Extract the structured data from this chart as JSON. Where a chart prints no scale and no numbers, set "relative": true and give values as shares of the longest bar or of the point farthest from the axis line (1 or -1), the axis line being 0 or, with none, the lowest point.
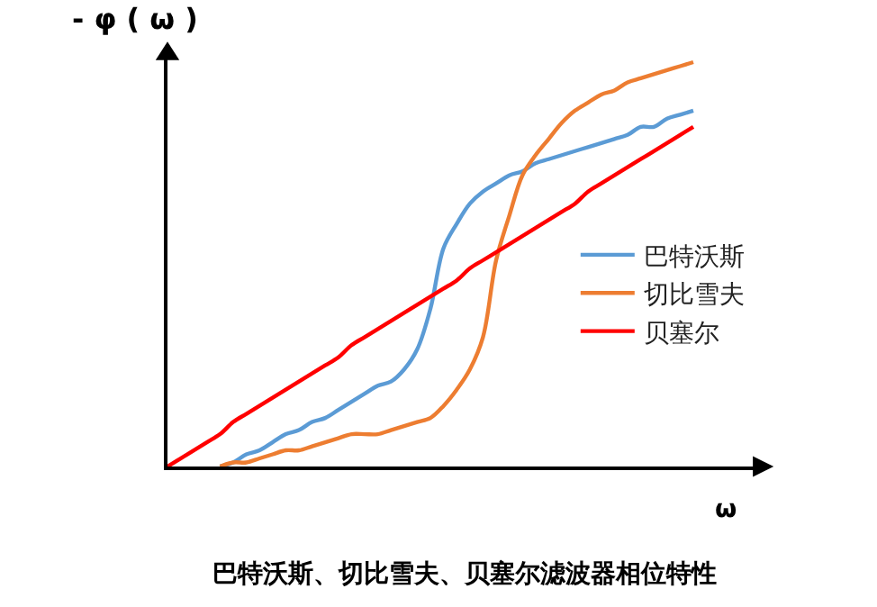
{
  "chart_data": {
    "type": "line",
    "title": "巴特沃斯、切比雪夫、贝塞尔滤波器相位特性",
    "xlabel": "ω",
    "ylabel": "- φ ( ω )",
    "relative": true,
    "legend": "right",
    "marker": "none",
    "line_style": "solid",
    "categories": [
      null,
      null,
      null,
      null,
      null,
      null,
      null,
      null,
      null,
      null,
      null,
      null,
      null,
      null,
      null,
      null,
      null,
      null,
      null,
      null,
      null,
      null,
      null,
      null,
      null,
      null,
      null,
      null,
      null,
      null,
      null,
      null,
      null,
      null,
      null,
      null,
      null,
      null,
      null,
      null,
      null
    ],
    "series": [
      {
        "name": "巴特沃斯",
        "color": "#5b9bd5",
        "values": [
          null,
          null,
          null,
          null,
          0,
          0.01,
          0.03,
          0.04,
          0.06,
          0.08,
          0.09,
          0.11,
          0.12,
          0.14,
          0.16,
          0.18,
          0.2,
          0.21,
          0.24,
          0.29,
          0.39,
          0.54,
          0.6,
          0.65,
          0.68,
          0.7,
          0.72,
          0.73,
          0.75,
          0.76,
          0.77,
          0.78,
          0.79,
          0.8,
          0.81,
          0.82,
          0.84,
          0.84,
          0.86,
          0.87,
          0.88
        ]
      },
      {
        "name": "切比雪夫",
        "color": "#ed7d31",
        "values": [
          null,
          null,
          null,
          null,
          0,
          0.01,
          0.01,
          0.02,
          0.03,
          0.04,
          0.04,
          0.05,
          0.06,
          0.07,
          0.08,
          0.08,
          0.08,
          0.09,
          0.1,
          0.11,
          0.12,
          0.15,
          0.19,
          0.24,
          0.32,
          0.51,
          0.62,
          0.72,
          0.77,
          0.81,
          0.85,
          0.88,
          0.9,
          0.92,
          0.93,
          0.95,
          0.96,
          0.97,
          0.98,
          0.99,
          1.0
        ]
      },
      {
        "name": "贝塞尔",
        "color": "#ff0000",
        "values": [
          0,
          0.02,
          0.04,
          0.06,
          0.08,
          0.11,
          0.13,
          0.15,
          0.17,
          0.19,
          0.21,
          0.23,
          0.25,
          0.27,
          0.3,
          0.32,
          0.34,
          0.36,
          0.38,
          0.4,
          0.42,
          0.44,
          0.46,
          0.49,
          0.51,
          0.53,
          0.55,
          0.57,
          0.59,
          0.61,
          0.63,
          0.65,
          0.68,
          0.7,
          0.72,
          0.74,
          0.76,
          0.78,
          0.8,
          0.82,
          0.84
        ]
      }
    ]
  }
}
